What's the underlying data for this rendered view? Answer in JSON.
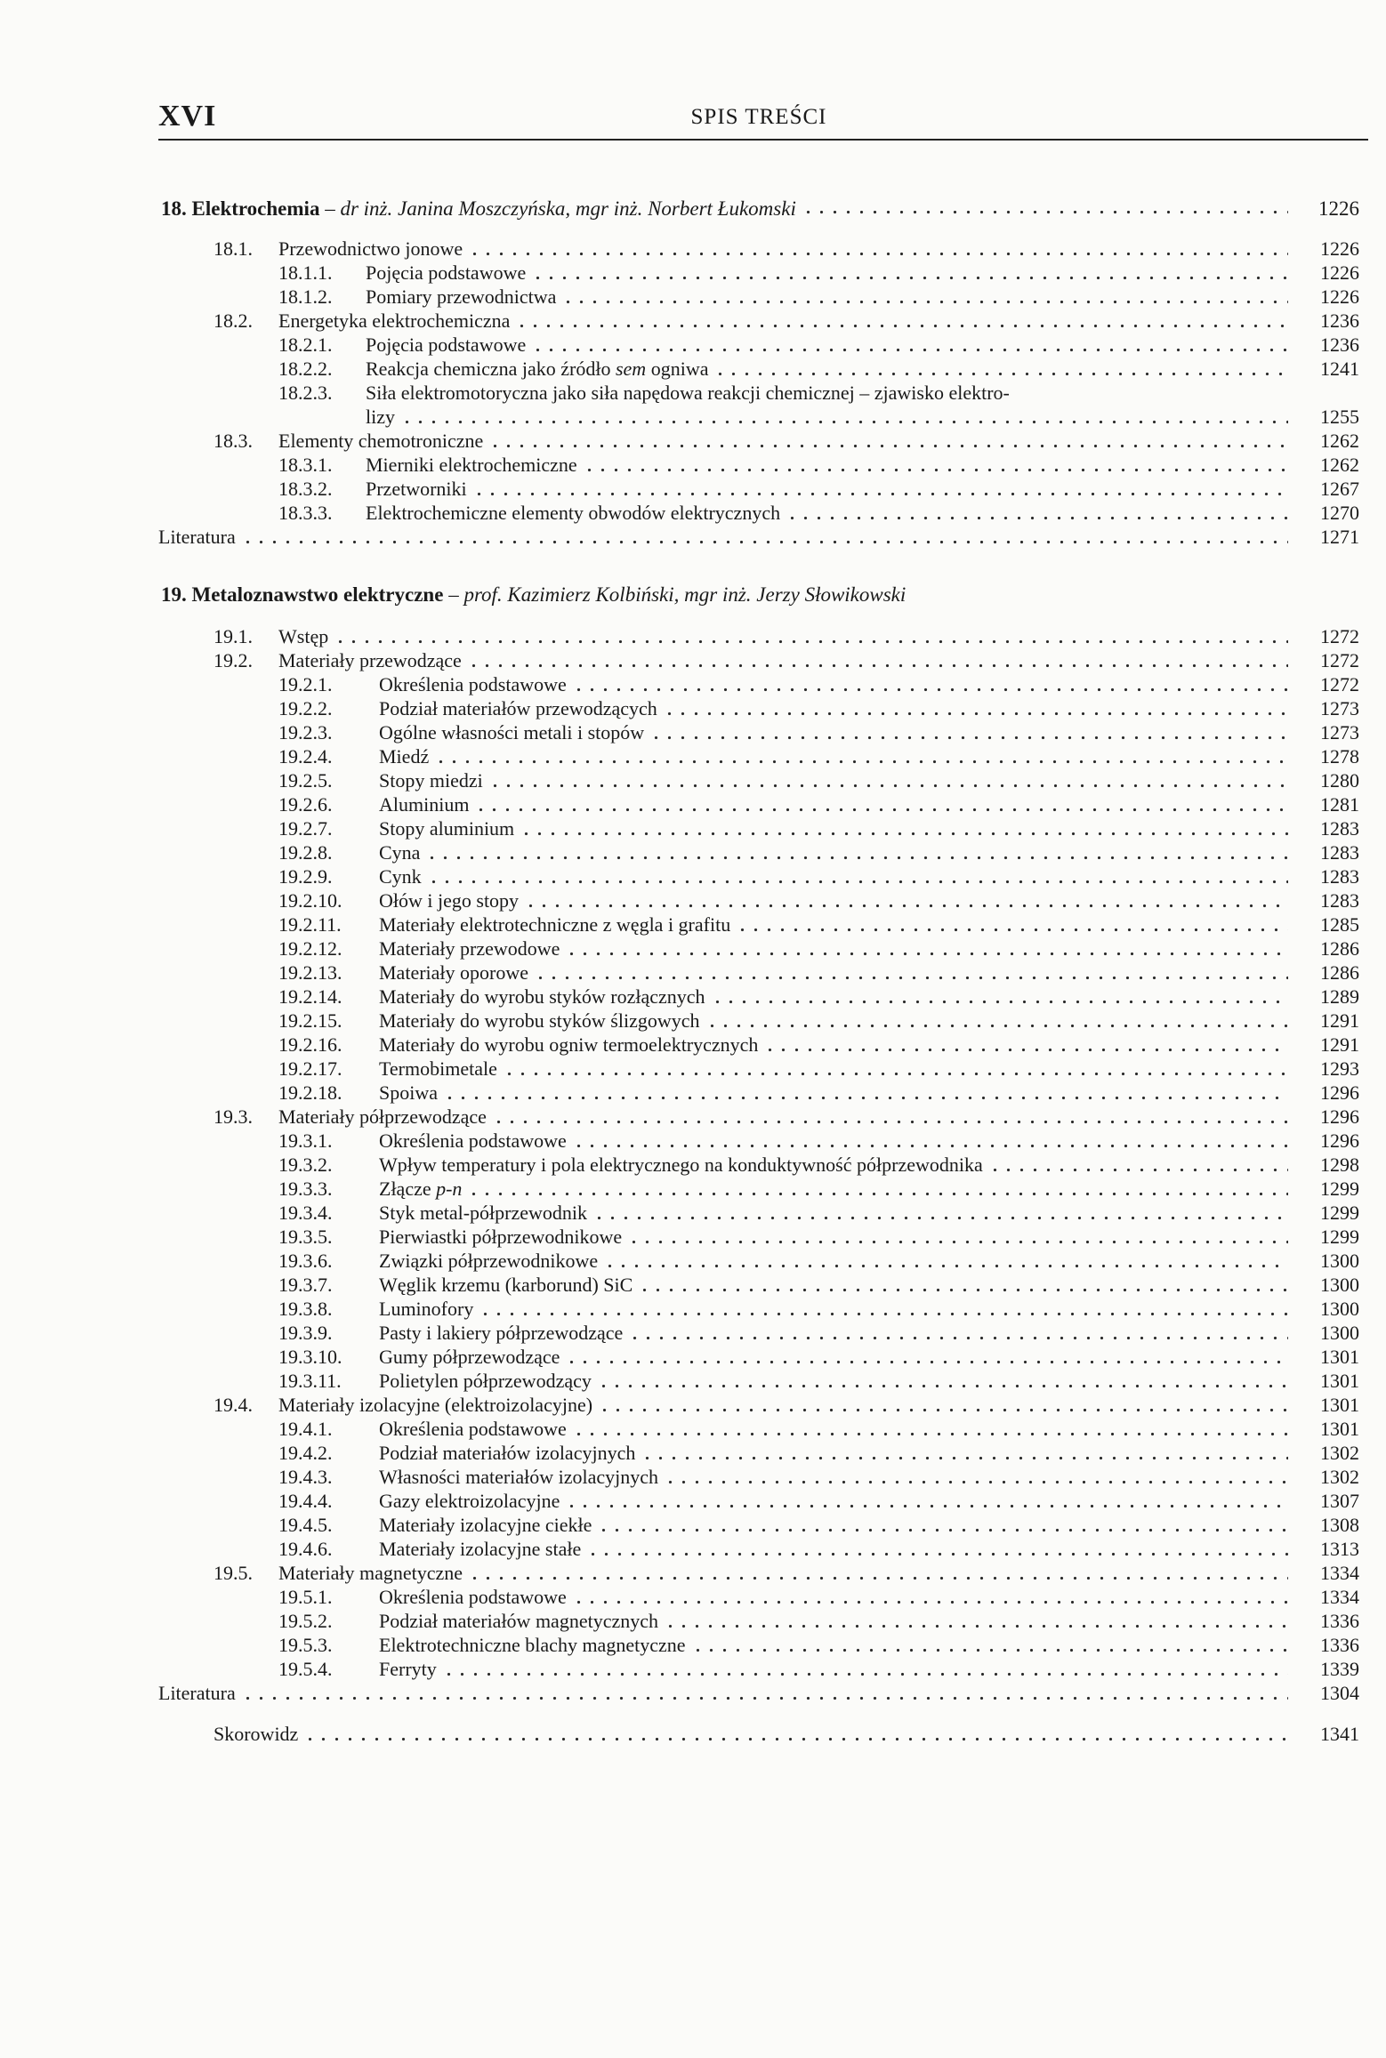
{
  "header": {
    "page_number": "XVI",
    "title": "SPIS TREŚCI"
  },
  "toc": {
    "chapters": [
      {
        "number": "18.",
        "name": "Elektrochemia",
        "dash": "–",
        "authors": "dr inż. Janina Moszczyńska, mgr inż. Norbert Łukomski",
        "page": "1226",
        "entries": [
          {
            "level": 1,
            "num": "18.1.",
            "title": [
              {
                "t": "Przewodnictwo jonowe"
              }
            ],
            "page": "1226"
          },
          {
            "level": 2,
            "num": "18.1.1.",
            "title": [
              {
                "t": "Pojęcia podstawowe"
              }
            ],
            "page": "1226"
          },
          {
            "level": 2,
            "num": "18.1.2.",
            "title": [
              {
                "t": "Pomiary przewodnictwa"
              }
            ],
            "page": "1226"
          },
          {
            "level": 1,
            "num": "18.2.",
            "title": [
              {
                "t": "Energetyka elektrochemiczna"
              }
            ],
            "page": "1236"
          },
          {
            "level": 2,
            "num": "18.2.1.",
            "title": [
              {
                "t": "Pojęcia podstawowe"
              }
            ],
            "page": "1236"
          },
          {
            "level": 2,
            "num": "18.2.2.",
            "title": [
              {
                "t": "Reakcja chemiczna jako źródło "
              },
              {
                "t": "sem",
                "i": true
              },
              {
                "t": " ogniwa"
              }
            ],
            "page": "1241"
          },
          {
            "level": 2,
            "num": "18.2.3.",
            "title": [
              {
                "t": "Siła elektromotoryczna jako siła napędowa reakcji chemicznej – zjawisko elektro-"
              }
            ],
            "wrap": true
          },
          {
            "level": 2,
            "num": "",
            "title": [
              {
                "t": "lizy"
              }
            ],
            "page": "1255"
          },
          {
            "level": 1,
            "num": "18.3.",
            "title": [
              {
                "t": "Elementy chemotroniczne"
              }
            ],
            "page": "1262"
          },
          {
            "level": 2,
            "num": "18.3.1.",
            "title": [
              {
                "t": "Mierniki elektrochemiczne"
              }
            ],
            "page": "1262"
          },
          {
            "level": 2,
            "num": "18.3.2.",
            "title": [
              {
                "t": "Przetworniki"
              }
            ],
            "page": "1267"
          },
          {
            "level": 2,
            "num": "18.3.3.",
            "title": [
              {
                "t": "Elektrochemiczne elementy obwodów elektrycznych"
              }
            ],
            "page": "1270"
          },
          {
            "level": 0,
            "num": "",
            "title": [
              {
                "t": "Literatura"
              }
            ],
            "page": "1271"
          }
        ]
      },
      {
        "number": "19.",
        "name": "Metaloznawstwo elektryczne",
        "dash": "–",
        "authors": "prof. Kazimierz Kolbiński, mgr inż. Jerzy Słowikowski",
        "entries": [
          {
            "level": 1,
            "num": "19.1.",
            "title": [
              {
                "t": "Wstęp"
              }
            ],
            "page": "1272"
          },
          {
            "level": 1,
            "num": "19.2.",
            "title": [
              {
                "t": "Materiały przewodzące"
              }
            ],
            "page": "1272"
          },
          {
            "level": 2,
            "num": "19.2.1.",
            "title": [
              {
                "t": "Określenia podstawowe"
              }
            ],
            "page": "1272"
          },
          {
            "level": 2,
            "num": "19.2.2.",
            "title": [
              {
                "t": "Podział materiałów przewodzących"
              }
            ],
            "page": "1273"
          },
          {
            "level": 2,
            "num": "19.2.3.",
            "title": [
              {
                "t": "Ogólne własności metali i stopów"
              }
            ],
            "page": "1273"
          },
          {
            "level": 2,
            "num": "19.2.4.",
            "title": [
              {
                "t": "Miedź"
              }
            ],
            "page": "1278"
          },
          {
            "level": 2,
            "num": "19.2.5.",
            "title": [
              {
                "t": "Stopy miedzi"
              }
            ],
            "page": "1280"
          },
          {
            "level": 2,
            "num": "19.2.6.",
            "title": [
              {
                "t": "Aluminium"
              }
            ],
            "page": "1281"
          },
          {
            "level": 2,
            "num": "19.2.7.",
            "title": [
              {
                "t": "Stopy aluminium"
              }
            ],
            "page": "1283"
          },
          {
            "level": 2,
            "num": "19.2.8.",
            "title": [
              {
                "t": "Cyna"
              }
            ],
            "page": "1283"
          },
          {
            "level": 2,
            "num": "19.2.9.",
            "title": [
              {
                "t": "Cynk"
              }
            ],
            "page": "1283"
          },
          {
            "level": 2,
            "num": "19.2.10.",
            "title": [
              {
                "t": "Ołów i jego stopy"
              }
            ],
            "page": "1283"
          },
          {
            "level": 2,
            "num": "19.2.11.",
            "title": [
              {
                "t": "Materiały elektrotechniczne z węgla i grafitu"
              }
            ],
            "page": "1285"
          },
          {
            "level": 2,
            "num": "19.2.12.",
            "title": [
              {
                "t": "Materiały przewodowe"
              }
            ],
            "page": "1286"
          },
          {
            "level": 2,
            "num": "19.2.13.",
            "title": [
              {
                "t": "Materiały oporowe"
              }
            ],
            "page": "1286"
          },
          {
            "level": 2,
            "num": "19.2.14.",
            "title": [
              {
                "t": "Materiały do wyrobu styków rozłącznych"
              }
            ],
            "page": "1289"
          },
          {
            "level": 2,
            "num": "19.2.15.",
            "title": [
              {
                "t": "Materiały do wyrobu styków ślizgowych"
              }
            ],
            "page": "1291"
          },
          {
            "level": 2,
            "num": "19.2.16.",
            "title": [
              {
                "t": "Materiały do wyrobu ogniw termoelektrycznych"
              }
            ],
            "page": "1291"
          },
          {
            "level": 2,
            "num": "19.2.17.",
            "title": [
              {
                "t": "Termobimetale"
              }
            ],
            "page": "1293"
          },
          {
            "level": 2,
            "num": "19.2.18.",
            "title": [
              {
                "t": "Spoiwa"
              }
            ],
            "page": "1296"
          },
          {
            "level": 1,
            "num": "19.3.",
            "title": [
              {
                "t": "Materiały półprzewodzące"
              }
            ],
            "page": "1296"
          },
          {
            "level": 2,
            "num": "19.3.1.",
            "title": [
              {
                "t": "Określenia podstawowe"
              }
            ],
            "page": "1296"
          },
          {
            "level": 2,
            "num": "19.3.2.",
            "title": [
              {
                "t": "Wpływ temperatury i pola elektrycznego na konduktywność półprzewodnika"
              }
            ],
            "page": "1298"
          },
          {
            "level": 2,
            "num": "19.3.3.",
            "title": [
              {
                "t": "Złącze "
              },
              {
                "t": "p-n",
                "i": true
              }
            ],
            "page": "1299"
          },
          {
            "level": 2,
            "num": "19.3.4.",
            "title": [
              {
                "t": "Styk metal-półprzewodnik"
              }
            ],
            "page": "1299"
          },
          {
            "level": 2,
            "num": "19.3.5.",
            "title": [
              {
                "t": "Pierwiastki półprzewodnikowe"
              }
            ],
            "page": "1299"
          },
          {
            "level": 2,
            "num": "19.3.6.",
            "title": [
              {
                "t": "Związki półprzewodnikowe"
              }
            ],
            "page": "1300"
          },
          {
            "level": 2,
            "num": "19.3.7.",
            "title": [
              {
                "t": "Węglik krzemu (karborund) SiC"
              }
            ],
            "page": "1300"
          },
          {
            "level": 2,
            "num": "19.3.8.",
            "title": [
              {
                "t": "Luminofory"
              }
            ],
            "page": "1300"
          },
          {
            "level": 2,
            "num": "19.3.9.",
            "title": [
              {
                "t": "Pasty i lakiery półprzewodzące"
              }
            ],
            "page": "1300"
          },
          {
            "level": 2,
            "num": "19.3.10.",
            "title": [
              {
                "t": "Gumy półprzewodzące"
              }
            ],
            "page": "1301"
          },
          {
            "level": 2,
            "num": "19.3.11.",
            "title": [
              {
                "t": "Polietylen półprzewodzący"
              }
            ],
            "page": "1301"
          },
          {
            "level": 1,
            "num": "19.4.",
            "title": [
              {
                "t": "Materiały izolacyjne (elektroizolacyjne)"
              }
            ],
            "page": "1301"
          },
          {
            "level": 2,
            "num": "19.4.1.",
            "title": [
              {
                "t": "Określenia podstawowe"
              }
            ],
            "page": "1301"
          },
          {
            "level": 2,
            "num": "19.4.2.",
            "title": [
              {
                "t": "Podział materiałów izolacyjnych"
              }
            ],
            "page": "1302"
          },
          {
            "level": 2,
            "num": "19.4.3.",
            "title": [
              {
                "t": "Własności materiałów izolacyjnych"
              }
            ],
            "page": "1302"
          },
          {
            "level": 2,
            "num": "19.4.4.",
            "title": [
              {
                "t": "Gazy elektroizolacyjne"
              }
            ],
            "page": "1307"
          },
          {
            "level": 2,
            "num": "19.4.5.",
            "title": [
              {
                "t": "Materiały izolacyjne ciekłe"
              }
            ],
            "page": "1308"
          },
          {
            "level": 2,
            "num": "19.4.6.",
            "title": [
              {
                "t": "Materiały izolacyjne stałe"
              }
            ],
            "page": "1313"
          },
          {
            "level": 1,
            "num": "19.5.",
            "title": [
              {
                "t": "Materiały magnetyczne"
              }
            ],
            "page": "1334"
          },
          {
            "level": 2,
            "num": "19.5.1.",
            "title": [
              {
                "t": "Określenia podstawowe"
              }
            ],
            "page": "1334"
          },
          {
            "level": 2,
            "num": "19.5.2.",
            "title": [
              {
                "t": "Podział materiałów magnetycznych"
              }
            ],
            "page": "1336"
          },
          {
            "level": 2,
            "num": "19.5.3.",
            "title": [
              {
                "t": "Elektrotechniczne blachy magnetyczne"
              }
            ],
            "page": "1336"
          },
          {
            "level": 2,
            "num": "19.5.4.",
            "title": [
              {
                "t": "Ferryty"
              }
            ],
            "page": "1339"
          },
          {
            "level": 0,
            "num": "",
            "title": [
              {
                "t": "Literatura"
              }
            ],
            "page": "1304"
          }
        ]
      }
    ],
    "index": {
      "title": "Skorowidz",
      "page": "1341"
    }
  }
}
